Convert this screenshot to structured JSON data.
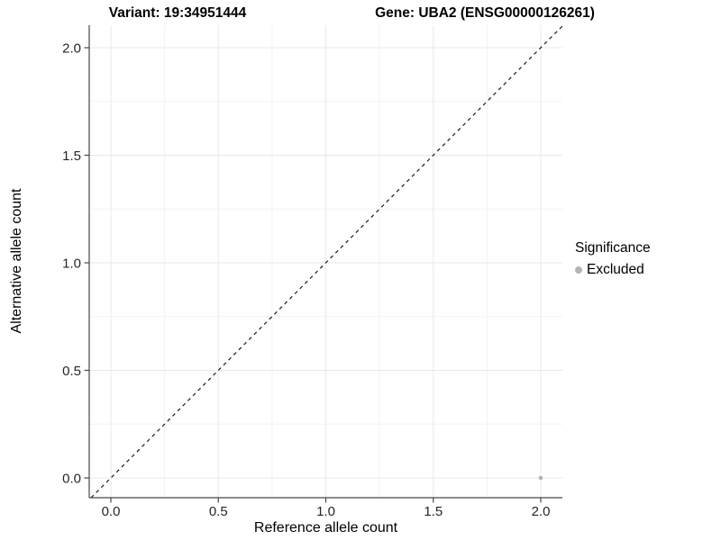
{
  "titles": {
    "variant": "Variant: 19:34951444",
    "gene": "Gene: UBA2 (ENSG00000126261)"
  },
  "chart_data": {
    "type": "scatter",
    "xlabel": "Reference allele count",
    "ylabel": "Alternative allele count",
    "xlim": [
      0,
      2
    ],
    "ylim": [
      0,
      2
    ],
    "xticks": [
      0,
      0.5,
      1,
      1.5,
      2
    ],
    "yticks": [
      0,
      0.5,
      1,
      1.5,
      2
    ],
    "xtick_labels": [
      "0.0",
      "0.5",
      "1.0",
      "1.5",
      "2.0"
    ],
    "ytick_labels": [
      "0.0",
      "0.5",
      "1.0",
      "1.5",
      "2.0"
    ],
    "minor_ticks": [
      0.25,
      0.75,
      1.25,
      1.75
    ],
    "grid": true,
    "points": [
      {
        "x": 2.0,
        "y": 0.0,
        "series": "Excluded"
      }
    ],
    "identity_line": {
      "slope": 1,
      "intercept": 0,
      "style": "dashed",
      "color": "#1a1a1a"
    },
    "legend": {
      "title": "Significance",
      "position": "right",
      "entries": [
        {
          "label": "Excluded",
          "color": "#b4b4b4"
        }
      ]
    },
    "colors": {
      "axis_line": "#474747",
      "tick_label": "#262626",
      "grid_major": "#e8e8e8",
      "grid_minor": "#f3f3f3",
      "point": "#b4b4b4",
      "background": "#ffffff"
    }
  }
}
